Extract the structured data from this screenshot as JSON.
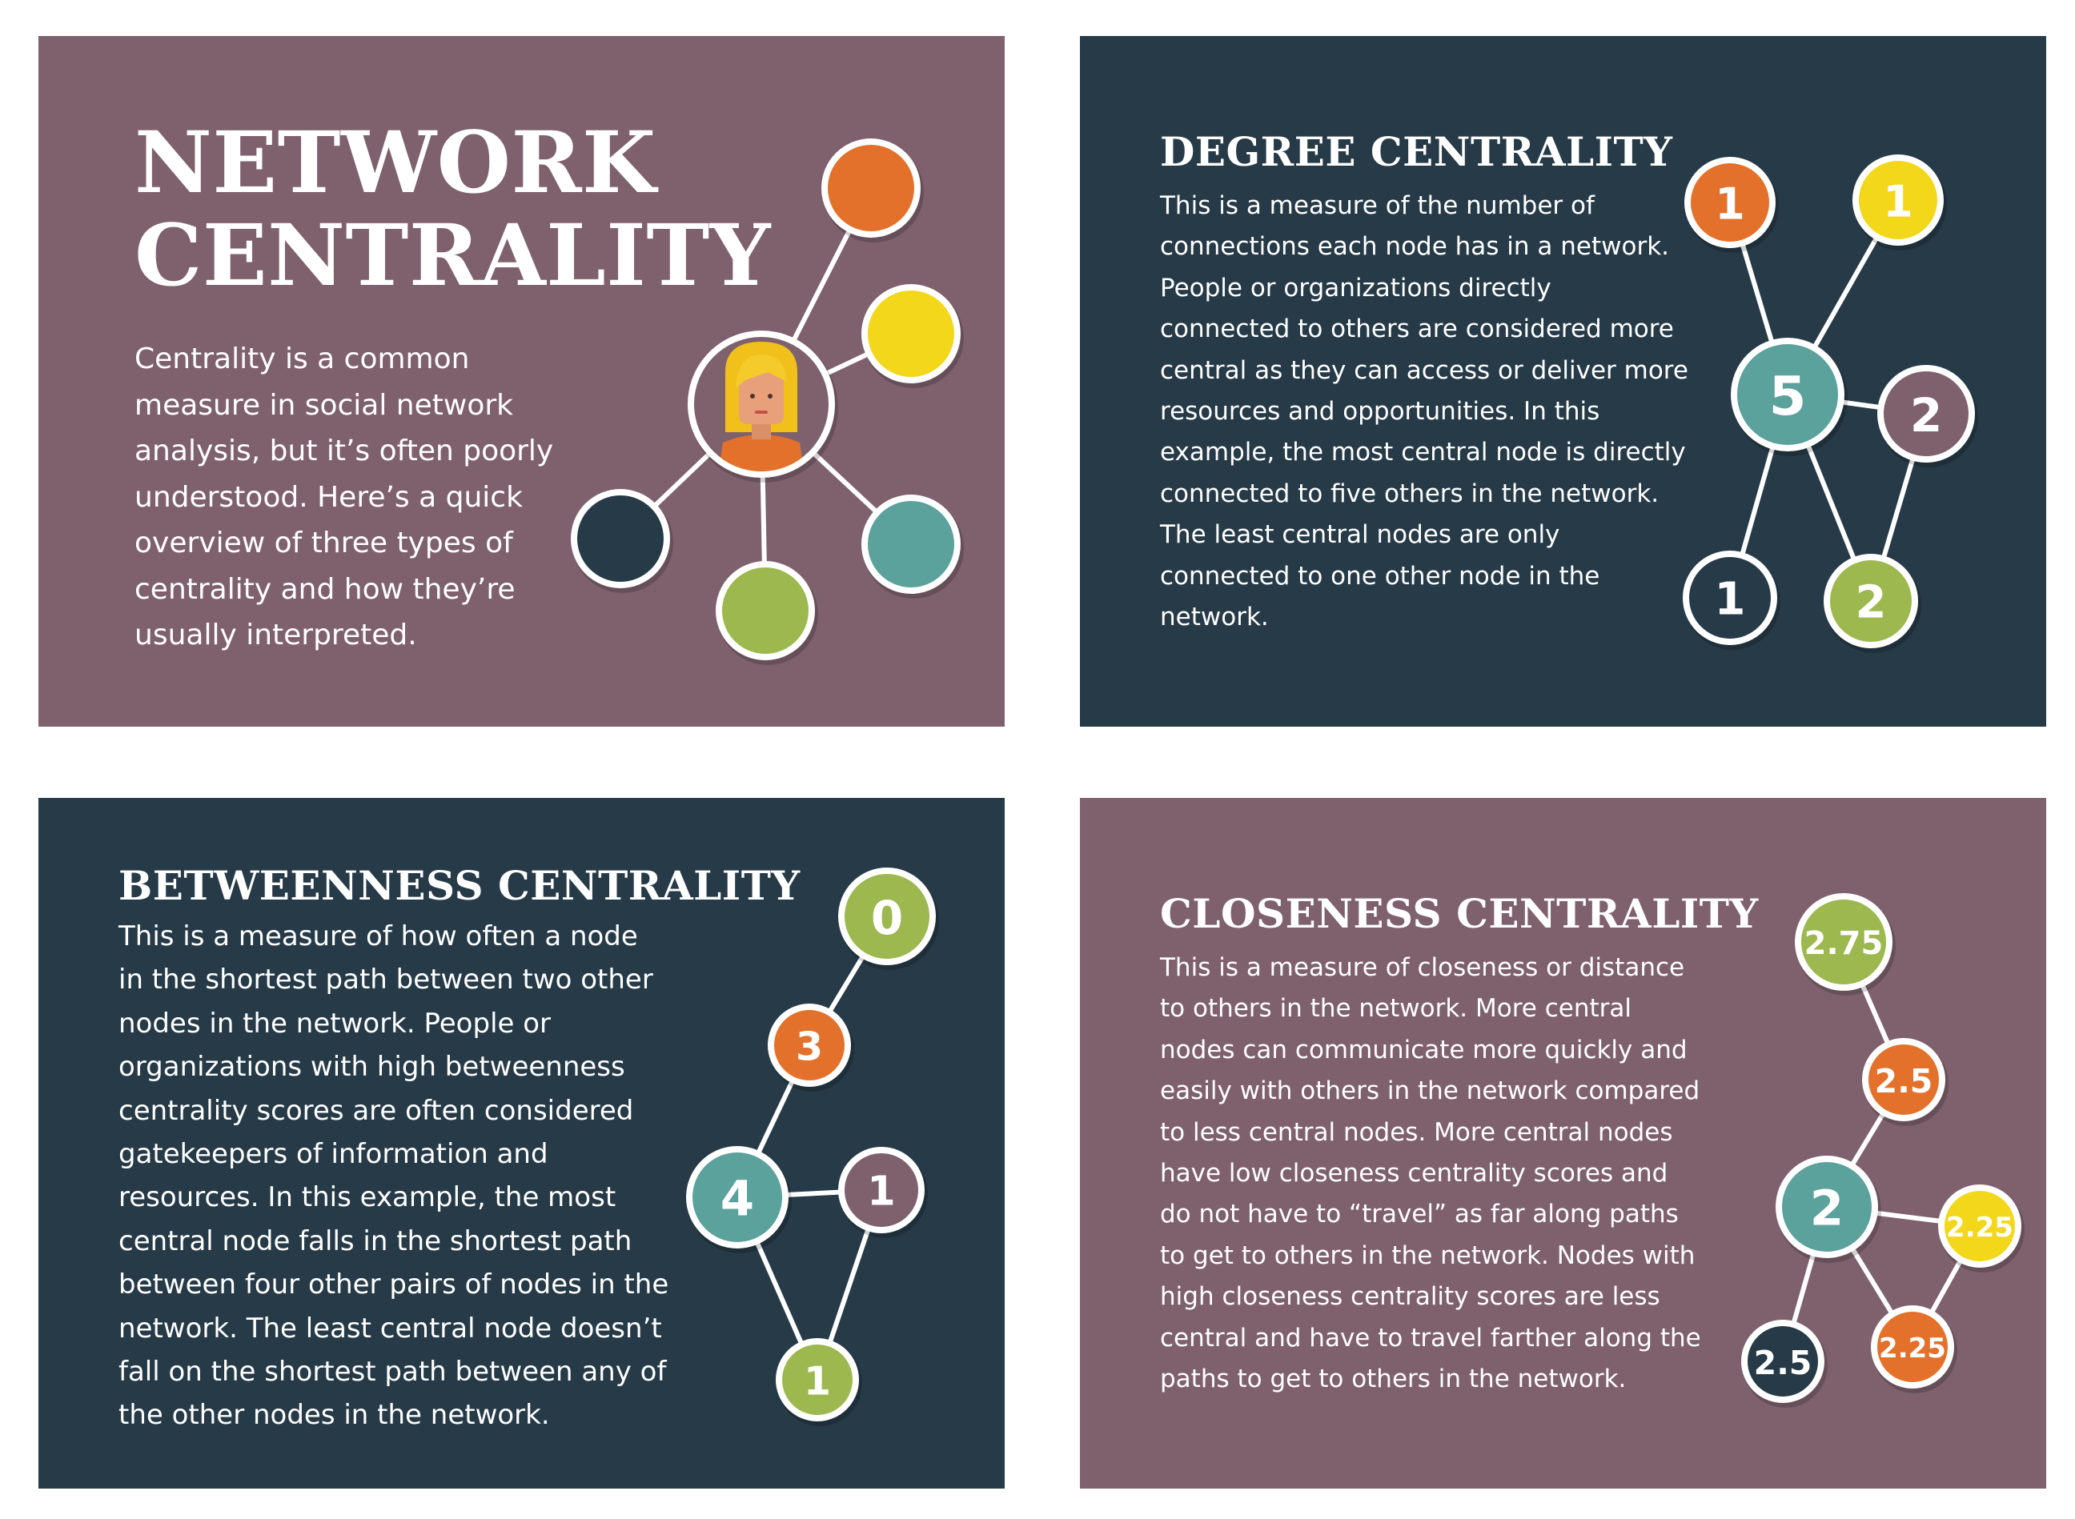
{
  "colors": {
    "mauve": "#7e616d",
    "navy": "#263a47",
    "orange": "#e3712b",
    "yellow": "#f3d71b",
    "teal": "#5ba19c",
    "green": "#9cb84f",
    "plum": "#7e616d",
    "navy_node": "#263a47",
    "white": "#ffffff"
  },
  "panels": {
    "intro": {
      "title_line1": "NETWORK",
      "title_line2": "CENTRALITY",
      "body": "Centrality is a common measure in social network analysis, but it’s often poorly understood. Here’s a quick overview of three types of centrality and how they’re usually interpreted."
    },
    "degree": {
      "title": "DEGREE CENTRALITY",
      "body": "This is a measure of the number of connections each node has in a network. People or organizations directly connected to others are considered more central as they can access or deliver more resources and opportunities. In this example, the most central node is directly connected to five others in the network. The least central nodes are only connected to one other node in the network."
    },
    "betweenness": {
      "title": "BETWEENNESS CENTRALITY",
      "body": "This is a measure of how often a node in the shortest path between two other nodes in the network. People or organizations with high betweenness centrality scores are often considered gatekeepers of information and resources. In this example, the most central node falls in the shortest path between four other pairs of nodes in the network. The least central node doesn’t fall on the shortest path between any of the other nodes in the network."
    },
    "closeness": {
      "title": "CLOSENESS CENTRALITY",
      "body": "This is a measure of closeness or distance to others in the network. More central nodes can communicate more quickly and easily with others in the network compared to less central nodes. More central nodes have low closeness centrality scores and do not have to “travel” as far along paths to get to others in the network. Nodes with high closeness centrality scores are less central and have to travel farther along the paths to get to others in the network."
    }
  },
  "diagrams": {
    "degree": {
      "nodes": [
        {
          "id": "top-left",
          "label": "1",
          "color": "orange"
        },
        {
          "id": "top-right",
          "label": "1",
          "color": "yellow"
        },
        {
          "id": "center",
          "label": "5",
          "color": "teal"
        },
        {
          "id": "right",
          "label": "2",
          "color": "plum"
        },
        {
          "id": "bottom-left",
          "label": "1",
          "color": "navy_node"
        },
        {
          "id": "bottom-right",
          "label": "2",
          "color": "green"
        }
      ],
      "edges": [
        [
          "center",
          "top-left"
        ],
        [
          "center",
          "top-right"
        ],
        [
          "center",
          "right"
        ],
        [
          "center",
          "bottom-left"
        ],
        [
          "center",
          "bottom-right"
        ],
        [
          "right",
          "bottom-right"
        ]
      ]
    },
    "betweenness": {
      "nodes": [
        {
          "id": "top",
          "label": "0",
          "color": "green"
        },
        {
          "id": "upper",
          "label": "3",
          "color": "orange"
        },
        {
          "id": "center",
          "label": "4",
          "color": "teal"
        },
        {
          "id": "right",
          "label": "1",
          "color": "plum"
        },
        {
          "id": "bottom",
          "label": "1",
          "color": "green"
        }
      ],
      "edges": [
        [
          "top",
          "upper"
        ],
        [
          "upper",
          "center"
        ],
        [
          "center",
          "right"
        ],
        [
          "center",
          "bottom"
        ],
        [
          "right",
          "bottom"
        ]
      ]
    },
    "closeness": {
      "nodes": [
        {
          "id": "top",
          "label": "2.75",
          "color": "green"
        },
        {
          "id": "upper",
          "label": "2.5",
          "color": "orange"
        },
        {
          "id": "center",
          "label": "2",
          "color": "teal"
        },
        {
          "id": "right",
          "label": "2.25",
          "color": "yellow"
        },
        {
          "id": "bottom-right",
          "label": "2.25",
          "color": "orange"
        },
        {
          "id": "bottom-left",
          "label": "2.5",
          "color": "navy_node"
        }
      ],
      "edges": [
        [
          "top",
          "upper"
        ],
        [
          "upper",
          "center"
        ],
        [
          "center",
          "right"
        ],
        [
          "center",
          "bottom-right"
        ],
        [
          "center",
          "bottom-left"
        ],
        [
          "right",
          "bottom-right"
        ]
      ]
    },
    "intro": {
      "nodes": [
        {
          "id": "person",
          "label": "",
          "color": "mauve"
        },
        {
          "id": "orange",
          "label": "",
          "color": "orange"
        },
        {
          "id": "yellow",
          "label": "",
          "color": "yellow"
        },
        {
          "id": "teal",
          "label": "",
          "color": "teal"
        },
        {
          "id": "green",
          "label": "",
          "color": "green"
        },
        {
          "id": "navy",
          "label": "",
          "color": "navy_node"
        }
      ],
      "edges": [
        [
          "person",
          "orange"
        ],
        [
          "person",
          "yellow"
        ],
        [
          "person",
          "teal"
        ],
        [
          "person",
          "green"
        ],
        [
          "person",
          "navy"
        ]
      ]
    }
  }
}
